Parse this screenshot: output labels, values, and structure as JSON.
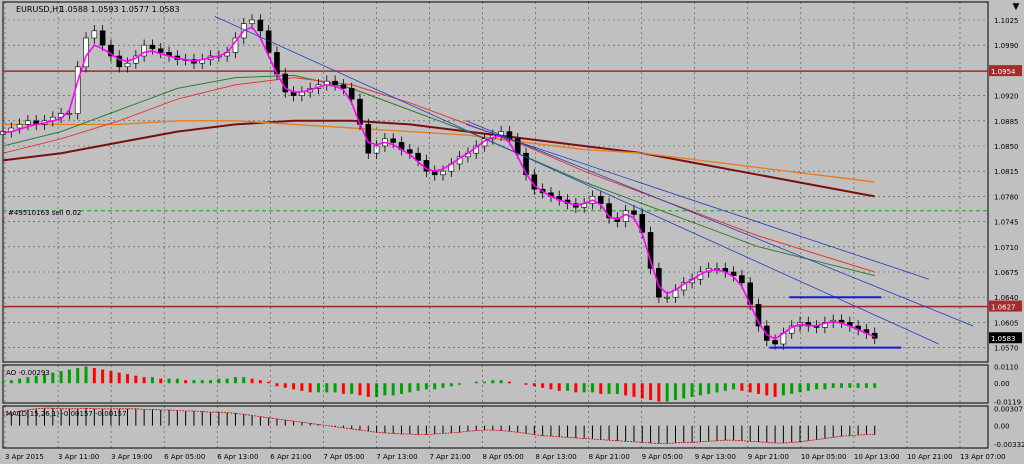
{
  "header": {
    "symbol": "EURUSD,H1",
    "ohlc": "1.0588 1.0593 1.0577 1.0583"
  },
  "colors": {
    "background": "#c0c0c0",
    "plot_background": "#c0c0c0",
    "grid": "#000000",
    "bull_candle": "#ffffff",
    "bear_candle": "#000000",
    "magenta_ma": "#ff00ff",
    "green_ma": "#2e7d32",
    "red_ma": "#e53935",
    "orange_ma": "#e67e22",
    "darkred_ma": "#7b1010",
    "trendline": "#1f3fbf",
    "hline": "#a52a2a",
    "ao_up": "#00a000",
    "ao_down": "#ff0000",
    "price_tag": "#a52a2a",
    "sell_level": "#00a000"
  },
  "annotations": {
    "sell_label": "#49510163 sell 0.02"
  },
  "price_tags": {
    "upper": "1.0954",
    "lower": "1.0627",
    "current": "1.0583"
  },
  "chart_data": {
    "type": "candlestick",
    "price_ticks": [
      "1.1025",
      "1.0990",
      "1.0954",
      "1.0920",
      "1.0885",
      "1.0850",
      "1.0815",
      "1.0780",
      "1.0745",
      "1.0710",
      "1.0675",
      "1.0640",
      "1.0605",
      "1.0570"
    ],
    "price_range": [
      1.055,
      1.105
    ],
    "time_ticks": [
      "3 Apr 2015",
      "3 Apr 11:00",
      "3 Apr 19:00",
      "6 Apr 05:00",
      "6 Apr 13:00",
      "6 Apr 21:00",
      "7 Apr 05:00",
      "7 Apr 13:00",
      "7 Apr 21:00",
      "8 Apr 05:00",
      "8 Apr 13:00",
      "8 Apr 21:00",
      "9 Apr 05:00",
      "9 Apr 13:00",
      "9 Apr 21:00",
      "10 Apr 05:00",
      "10 Apr 13:00",
      "10 Apr 21:00",
      "13 Apr 07:00"
    ],
    "horizontal_levels": [
      1.0954,
      1.0627
    ],
    "sell_level": 1.076,
    "close_path": [
      1.087,
      1.0875,
      1.088,
      1.0885,
      1.088,
      1.0885,
      1.089,
      1.0895,
      1.0895,
      1.096,
      1.1,
      1.101,
      1.099,
      1.0975,
      1.096,
      1.0965,
      1.0975,
      1.099,
      1.0985,
      1.098,
      1.0975,
      1.097,
      1.097,
      1.0965,
      1.097,
      1.0975,
      1.0975,
      1.098,
      1.1,
      1.102,
      1.1025,
      1.101,
      1.098,
      1.095,
      1.0925,
      1.092,
      1.0925,
      1.093,
      1.0935,
      1.094,
      1.0935,
      1.093,
      1.0915,
      1.088,
      1.084,
      1.085,
      1.086,
      1.0855,
      1.0845,
      1.084,
      1.083,
      1.0815,
      1.081,
      1.0815,
      1.0825,
      1.0835,
      1.084,
      1.085,
      1.086,
      1.0865,
      1.087,
      1.086,
      1.084,
      1.081,
      1.079,
      1.0785,
      1.078,
      1.0775,
      1.077,
      1.0765,
      1.077,
      1.078,
      1.077,
      1.075,
      1.0745,
      1.076,
      1.0755,
      1.073,
      1.068,
      1.064,
      1.064,
      1.065,
      1.066,
      1.0665,
      1.0675,
      1.068,
      1.068,
      1.0675,
      1.067,
      1.066,
      1.063,
      1.06,
      1.058,
      1.0575,
      1.059,
      1.06,
      1.0605,
      1.06,
      1.0598,
      1.0605,
      1.0608,
      1.0605,
      1.06,
      1.0595,
      1.059,
      1.0583
    ],
    "magenta_ma": [
      1.0868,
      1.087,
      1.0873,
      1.0877,
      1.088,
      1.0882,
      1.0885,
      1.0888,
      1.09,
      1.094,
      1.0975,
      1.099,
      1.0985,
      1.0978,
      1.097,
      1.0968,
      1.0972,
      1.098,
      1.0982,
      1.0978,
      1.0975,
      1.0972,
      1.097,
      1.0968,
      1.097,
      1.0973,
      1.0975,
      1.098,
      1.0995,
      1.101,
      1.1015,
      1.1,
      1.0975,
      1.095,
      1.093,
      1.0925,
      1.0925,
      1.0928,
      1.0932,
      1.0935,
      1.0933,
      1.0928,
      1.091,
      1.088,
      1.0855,
      1.0852,
      1.0855,
      1.0852,
      1.0845,
      1.0838,
      1.0828,
      1.0818,
      1.0815,
      1.0818,
      1.0825,
      1.0833,
      1.084,
      1.0848,
      1.0857,
      1.0862,
      1.0864,
      1.0855,
      1.0835,
      1.0812,
      1.0795,
      1.0787,
      1.078,
      1.0775,
      1.0771,
      1.0768,
      1.077,
      1.0775,
      1.0768,
      1.0752,
      1.0748,
      1.0755,
      1.075,
      1.0728,
      1.069,
      1.0655,
      1.0645,
      1.065,
      1.0658,
      1.0664,
      1.0672,
      1.0677,
      1.0678,
      1.0675,
      1.0668,
      1.0655,
      1.063,
      1.0605,
      1.0588,
      1.0582,
      1.059,
      1.0598,
      1.0602,
      1.0601,
      1.06,
      1.0604,
      1.0606,
      1.0604,
      1.06,
      1.0595,
      1.059,
      1.0585
    ],
    "green_ma": [
      1.085,
      1.087,
      1.09,
      1.093,
      1.0945,
      1.0948,
      1.093,
      1.09,
      1.087,
      1.0835,
      1.08,
      1.077,
      1.074,
      1.071,
      1.069,
      1.067
    ],
    "red_ma": [
      1.084,
      1.086,
      1.0885,
      1.0915,
      1.0935,
      1.0945,
      1.0935,
      1.091,
      1.088,
      1.085,
      1.0815,
      1.0785,
      1.0755,
      1.0725,
      1.07,
      1.0675
    ],
    "orange_ma": [
      1.088,
      1.088,
      1.088,
      1.0885,
      1.0885,
      1.088,
      1.0875,
      1.087,
      1.0865,
      1.0855,
      1.0845,
      1.084,
      1.083,
      1.082,
      1.081,
      1.08
    ],
    "darkred_ma": [
      1.083,
      1.084,
      1.0855,
      1.087,
      1.088,
      1.0885,
      1.0885,
      1.088,
      1.087,
      1.086,
      1.085,
      1.084,
      1.0825,
      1.081,
      1.0795,
      1.078
    ],
    "trendlines": [
      {
        "x1": 0.215,
        "p1": 1.103,
        "x2": 0.95,
        "p2": 1.0575
      },
      {
        "x1": 0.47,
        "p1": 1.0885,
        "x2": 0.985,
        "p2": 1.06
      },
      {
        "x1": 0.47,
        "p1": 1.088,
        "x2": 0.94,
        "p2": 1.0665
      }
    ],
    "rectangle": {
      "x1": 0.778,
      "x2": 0.912,
      "top": 1.064,
      "bottom": 1.057
    },
    "ao": {
      "label": "AO -0.00293",
      "ticks": [
        "0.0110",
        "0.00",
        "-0.0119"
      ],
      "range": [
        -0.013,
        0.012
      ],
      "values": [
        0.001,
        0.002,
        0.003,
        0.004,
        0.005,
        0.006,
        0.007,
        0.008,
        0.009,
        0.01,
        0.011,
        0.01,
        0.009,
        0.008,
        0.007,
        0.006,
        0.005,
        0.004,
        0.004,
        0.003,
        0.003,
        0.003,
        0.002,
        0.002,
        0.002,
        0.002,
        0.003,
        0.003,
        0.004,
        0.004,
        0.003,
        0.002,
        0.001,
        -0.002,
        -0.003,
        -0.004,
        -0.005,
        -0.006,
        -0.006,
        -0.006,
        -0.006,
        -0.007,
        -0.007,
        -0.008,
        -0.009,
        -0.009,
        -0.008,
        -0.008,
        -0.007,
        -0.006,
        -0.005,
        -0.004,
        -0.004,
        -0.003,
        -0.002,
        -0.001,
        0.0,
        0.001,
        0.001,
        0.002,
        0.002,
        0.001,
        0.0,
        -0.001,
        -0.002,
        -0.003,
        -0.004,
        -0.005,
        -0.005,
        -0.006,
        -0.006,
        -0.006,
        -0.007,
        -0.007,
        -0.007,
        -0.008,
        -0.009,
        -0.01,
        -0.011,
        -0.012,
        -0.012,
        -0.011,
        -0.01,
        -0.009,
        -0.008,
        -0.007,
        -0.006,
        -0.005,
        -0.004,
        -0.005,
        -0.006,
        -0.007,
        -0.008,
        -0.009,
        -0.008,
        -0.007,
        -0.006,
        -0.005,
        -0.004,
        -0.004,
        -0.003,
        -0.003,
        -0.003,
        -0.003,
        -0.003,
        -0.003
      ]
    },
    "macd": {
      "label": "MACD(15,26,1) -0.00157 -0.00157",
      "ticks": [
        "0.00307",
        "0.00",
        "-0.00332"
      ],
      "range": [
        -0.004,
        0.0035
      ],
      "values": [
        0.0018,
        0.0022,
        0.0026,
        0.0028,
        0.003,
        0.0031,
        0.0031,
        0.003,
        0.003,
        0.003,
        0.0031,
        0.003,
        0.003,
        0.003,
        0.003,
        0.003,
        0.003,
        0.0029,
        0.0029,
        0.0028,
        0.0028,
        0.0027,
        0.0026,
        0.0026,
        0.0025,
        0.0024,
        0.0024,
        0.0023,
        0.0022,
        0.002,
        0.0018,
        0.0016,
        0.0014,
        0.0012,
        0.001,
        0.0008,
        0.0006,
        0.0004,
        0.0002,
        0.0,
        -0.0002,
        -0.0004,
        -0.0006,
        -0.0008,
        -0.001,
        -0.0012,
        -0.0013,
        -0.0014,
        -0.0015,
        -0.0015,
        -0.0016,
        -0.0016,
        -0.0015,
        -0.0014,
        -0.0013,
        -0.0012,
        -0.001,
        -0.0009,
        -0.0008,
        -0.0008,
        -0.0009,
        -0.001,
        -0.0012,
        -0.0014,
        -0.0016,
        -0.0018,
        -0.0019,
        -0.002,
        -0.0021,
        -0.0022,
        -0.0023,
        -0.0024,
        -0.0025,
        -0.0026,
        -0.0027,
        -0.0028,
        -0.0029,
        -0.003,
        -0.0031,
        -0.0032,
        -0.0032,
        -0.0031,
        -0.003,
        -0.003,
        -0.0029,
        -0.0028,
        -0.0027,
        -0.0026,
        -0.0026,
        -0.0027,
        -0.0028,
        -0.0029,
        -0.003,
        -0.0031,
        -0.0031,
        -0.003,
        -0.0029,
        -0.0027,
        -0.0025,
        -0.0023,
        -0.0021,
        -0.0019,
        -0.0018,
        -0.0017,
        -0.0016,
        -0.0016
      ]
    }
  }
}
